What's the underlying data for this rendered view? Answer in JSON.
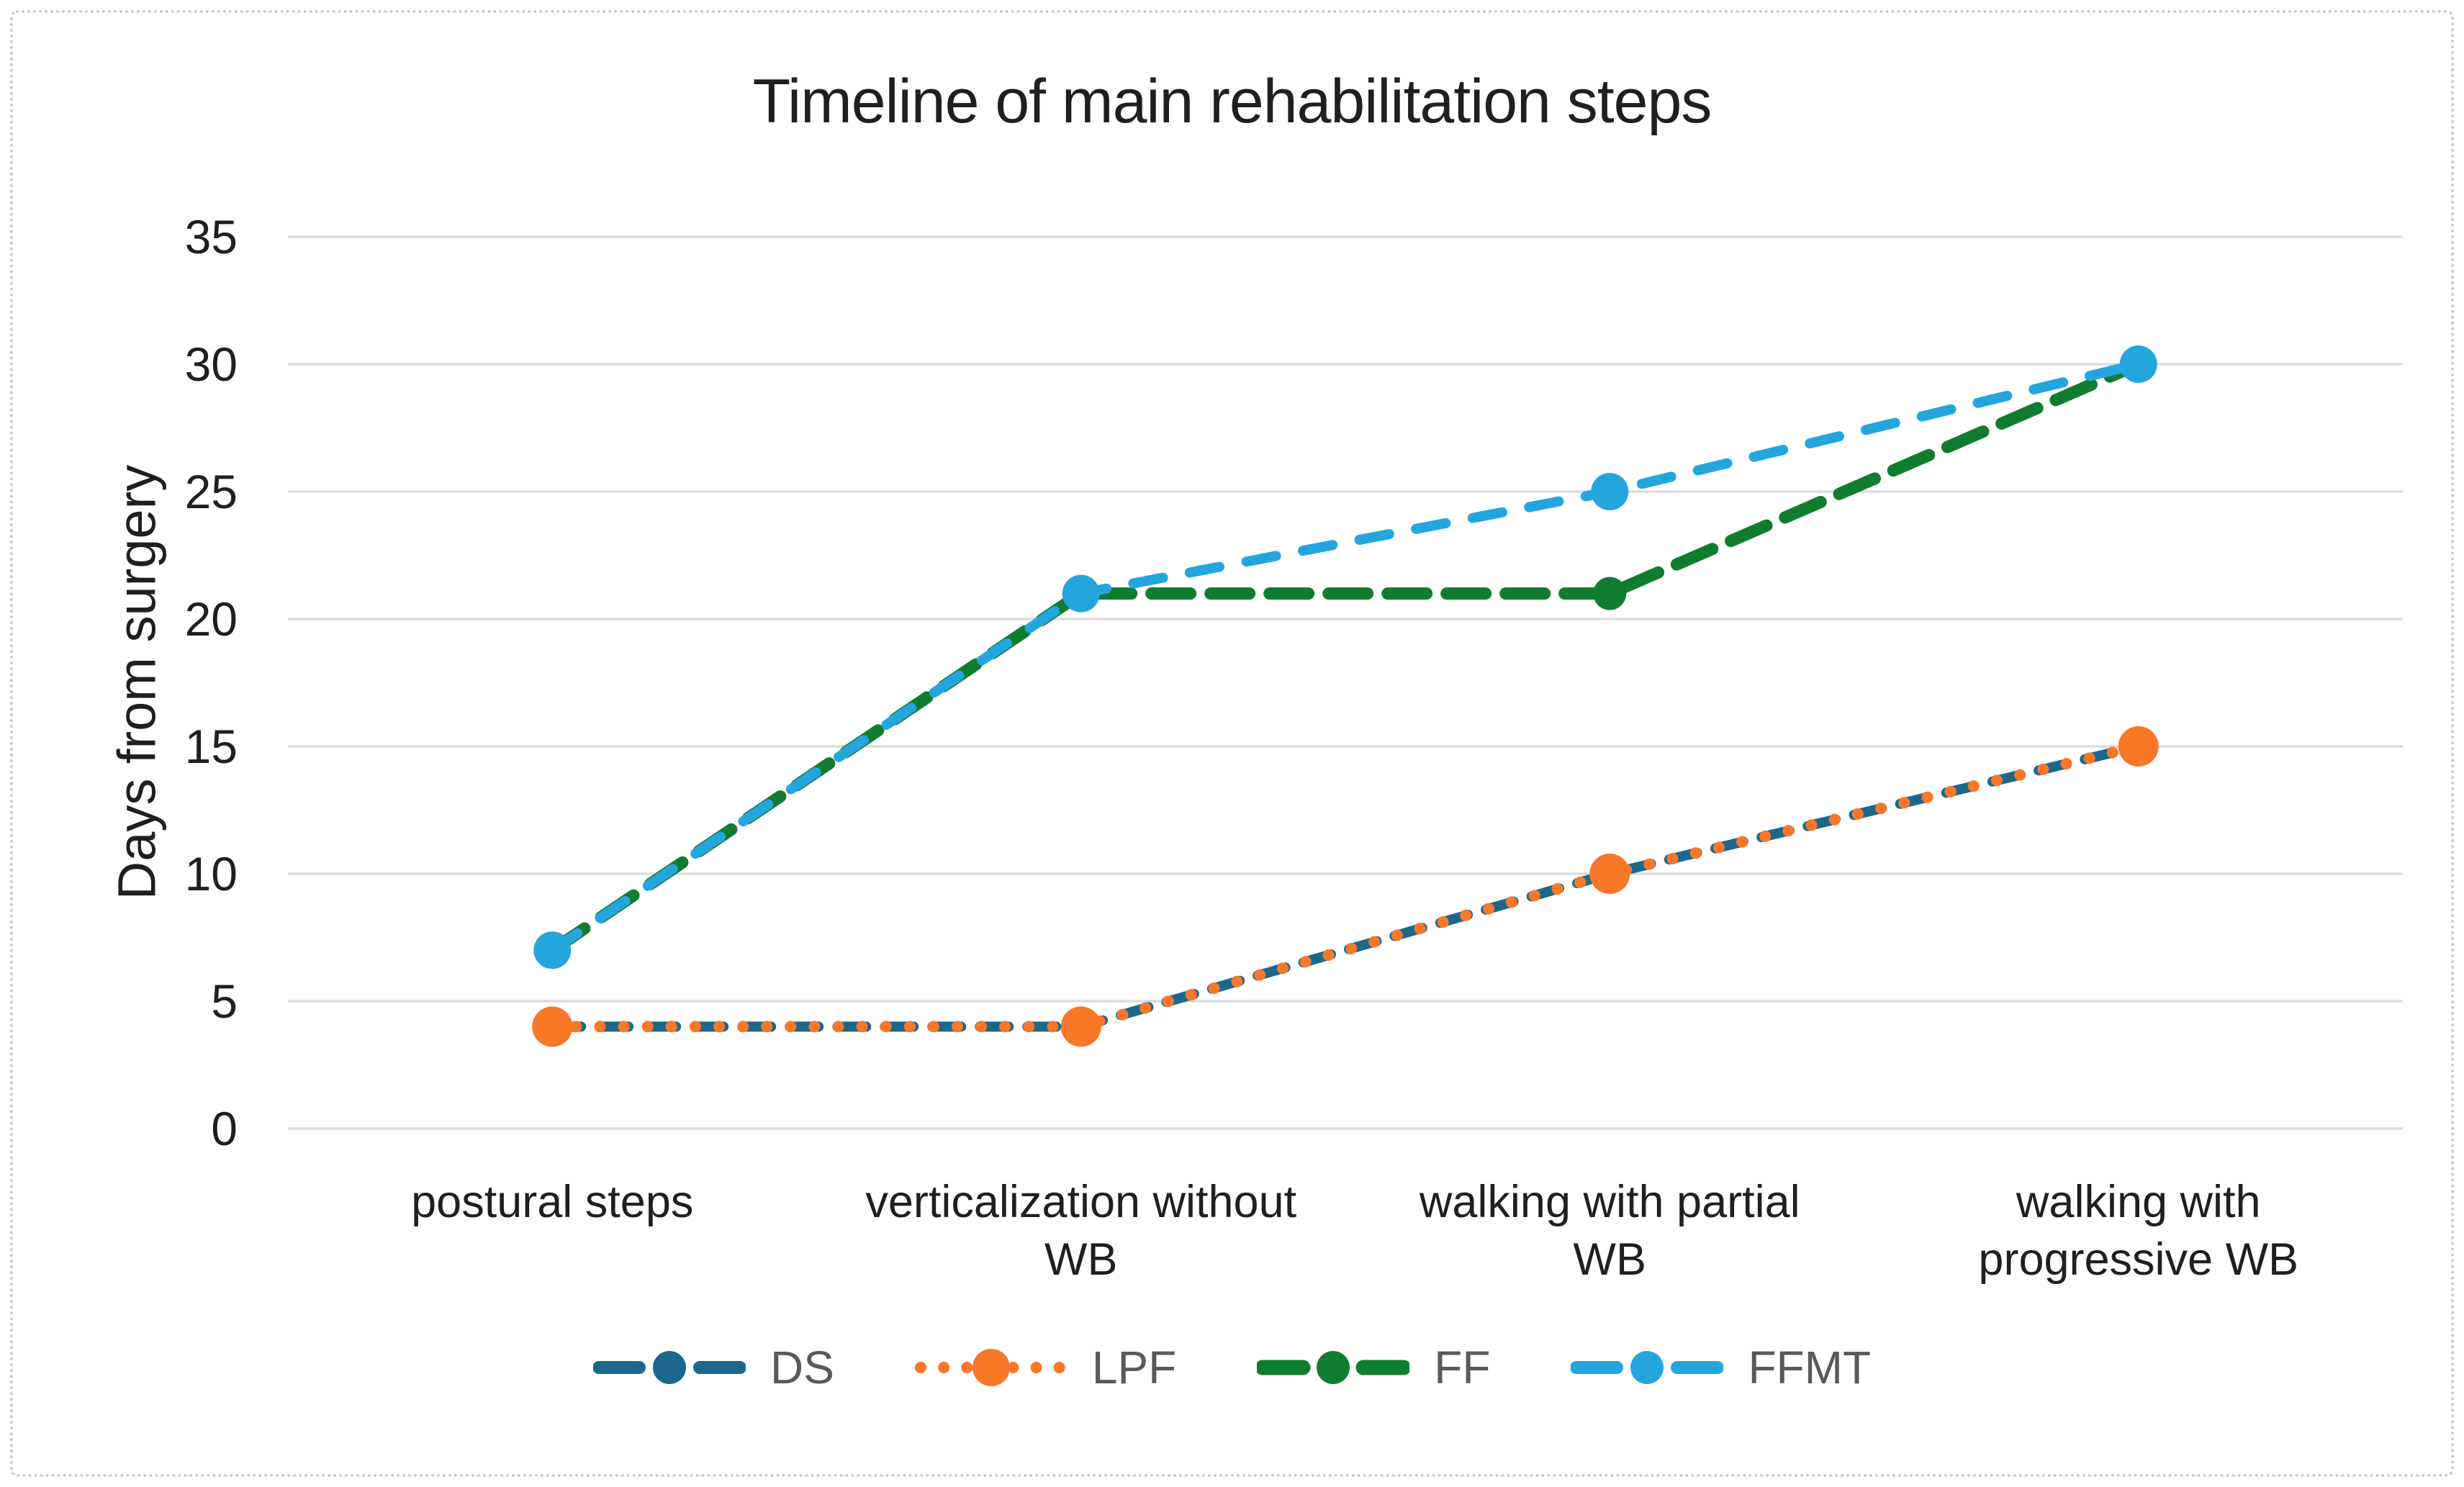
{
  "chart_data": {
    "type": "line",
    "title": "Timeline of main rehabilitation steps",
    "xlabel": "",
    "ylabel": "Days from surgery",
    "ylim": [
      0,
      35
    ],
    "yticks": [
      0,
      5,
      10,
      15,
      20,
      25,
      30,
      35
    ],
    "grid": true,
    "legend_position": "bottom",
    "categories": [
      "postural steps",
      "verticalization without WB",
      "walking with partial WB",
      "walking with progressive WB"
    ],
    "categories_display": [
      [
        "postural steps"
      ],
      [
        "verticalization without",
        "WB"
      ],
      [
        "walking with partial",
        "WB"
      ],
      [
        "walking with",
        "progressive WB"
      ]
    ],
    "series": [
      {
        "name": "DS",
        "values": [
          4,
          4,
          10,
          15
        ],
        "color": "#1b688c",
        "style": "dashed",
        "dash": "40 26",
        "line_width": 14,
        "marker_radius": 21
      },
      {
        "name": "LPF",
        "values": [
          4,
          4,
          10,
          15
        ],
        "color": "#f87729",
        "style": "dotted",
        "dash": "0.1 33",
        "line_width": 16,
        "marker_radius": 28
      },
      {
        "name": "FF",
        "values": [
          7,
          21,
          21,
          30
        ],
        "color": "#107c30",
        "style": "dashed",
        "dash": "54 28",
        "line_width": 17,
        "marker_radius": 23
      },
      {
        "name": "FFMT",
        "values": [
          7,
          21,
          25,
          30
        ],
        "color": "#25a5dd",
        "style": "dashed",
        "dash": "42 38",
        "line_width": 14,
        "marker_radius": 26
      }
    ],
    "colors": {
      "gridline": "#dcdcdc",
      "axis_text": "#1f1f1f",
      "legend_text": "#595959",
      "background": "#ffffff",
      "border_dots": "#c9c9c9"
    }
  }
}
